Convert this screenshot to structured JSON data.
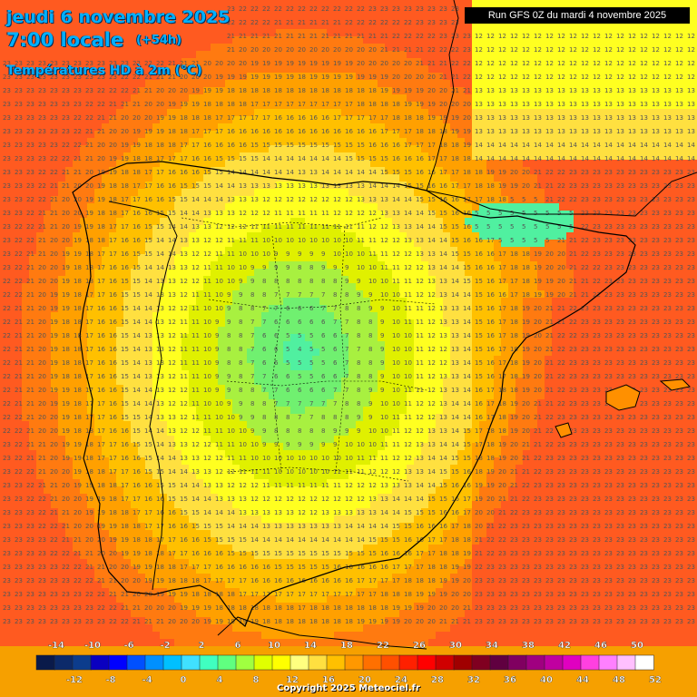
{
  "header": {
    "date": "jeudi 6 novembre 2025",
    "time": "7:00 locale",
    "offset": "(+54h)",
    "field": "Températures HD à 2m (°C)",
    "run": "Run GFS 0Z du mardi 4 novembre 2025"
  },
  "footer": {
    "copyright": "Copyright 2025 Meteociel.fr"
  },
  "legend": {
    "upper_labels": [
      "-14",
      "-10",
      "-6",
      "-2",
      "2",
      "6",
      "10",
      "14",
      "18",
      "22",
      "26",
      "30",
      "34",
      "38",
      "42",
      "46",
      "50"
    ],
    "lower_labels": [
      "-12",
      "-8",
      "-4",
      "0",
      "4",
      "8",
      "12",
      "16",
      "20",
      "24",
      "28",
      "32",
      "36",
      "40",
      "44",
      "48",
      "52"
    ],
    "colors": [
      "#0a1a4a",
      "#0c2a6a",
      "#0c3c8c",
      "#0a00c0",
      "#0000ff",
      "#0050ff",
      "#0090ff",
      "#00c0ff",
      "#40e0ff",
      "#40ffc0",
      "#60ff80",
      "#a0ff40",
      "#e0ff00",
      "#ffff00",
      "#ffff80",
      "#ffe040",
      "#ffc000",
      "#ff9800",
      "#ff7000",
      "#ff5000",
      "#ff2000",
      "#ff0000",
      "#d00000",
      "#a00000",
      "#800020",
      "#600040",
      "#800060",
      "#a00080",
      "#c000a0",
      "#e000c0",
      "#ff40e0",
      "#ff80ff",
      "#ffc0ff",
      "#ffffff"
    ]
  },
  "map": {
    "field": "temperature_2m",
    "unit": "°C",
    "region": "Iberian Peninsula",
    "features": [
      "Spain",
      "Portugal",
      "Balearic Islands"
    ]
  }
}
